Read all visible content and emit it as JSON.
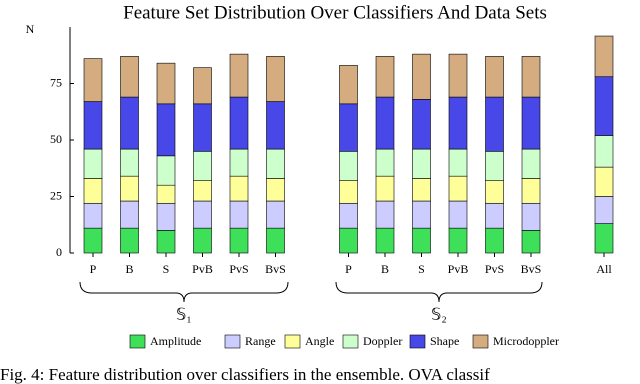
{
  "chart_data": {
    "type": "stacked-bar",
    "title": "Feature Set Distribution Over Classifiers And Data Sets",
    "y_label": "N",
    "categories": [
      "P",
      "B",
      "S",
      "PvB",
      "PvS",
      "BvS",
      null,
      "P",
      "B",
      "S",
      "PvB",
      "PvS",
      "BvS",
      null,
      "All"
    ],
    "group_labels": [
      "𝕊₁",
      "𝕊₂"
    ],
    "ylim": [
      0,
      100
    ],
    "yticks": [
      0,
      25,
      50,
      75
    ],
    "series": [
      {
        "name": "Amplitude",
        "color": "#3ee05a",
        "values": [
          11,
          11,
          10,
          11,
          11,
          11,
          null,
          11,
          11,
          11,
          11,
          11,
          10,
          null,
          13
        ]
      },
      {
        "name": "Range",
        "color": "#ccccff",
        "values": [
          11,
          12,
          12,
          12,
          12,
          12,
          null,
          11,
          12,
          12,
          12,
          11,
          12,
          null,
          12
        ]
      },
      {
        "name": "Angle",
        "color": "#ffff99",
        "values": [
          11,
          11,
          8,
          9,
          11,
          10,
          null,
          10,
          11,
          10,
          11,
          10,
          11,
          null,
          13
        ]
      },
      {
        "name": "Doppler",
        "color": "#ccffcc",
        "values": [
          13,
          12,
          13,
          13,
          12,
          13,
          null,
          13,
          12,
          13,
          12,
          13,
          13,
          null,
          14
        ]
      },
      {
        "name": "Shape",
        "color": "#4848e8",
        "values": [
          21,
          23,
          23,
          21,
          23,
          21,
          null,
          21,
          23,
          22,
          23,
          24,
          23,
          null,
          26
        ]
      },
      {
        "name": "Microdoppler",
        "color": "#d4ac80",
        "values": [
          19,
          18,
          18,
          16,
          19,
          20,
          null,
          17,
          18,
          20,
          19,
          18,
          18,
          null,
          18
        ]
      }
    ],
    "caption": "Fig. 4: Feature distribution over classifiers in the ensemble. OVA classif"
  }
}
